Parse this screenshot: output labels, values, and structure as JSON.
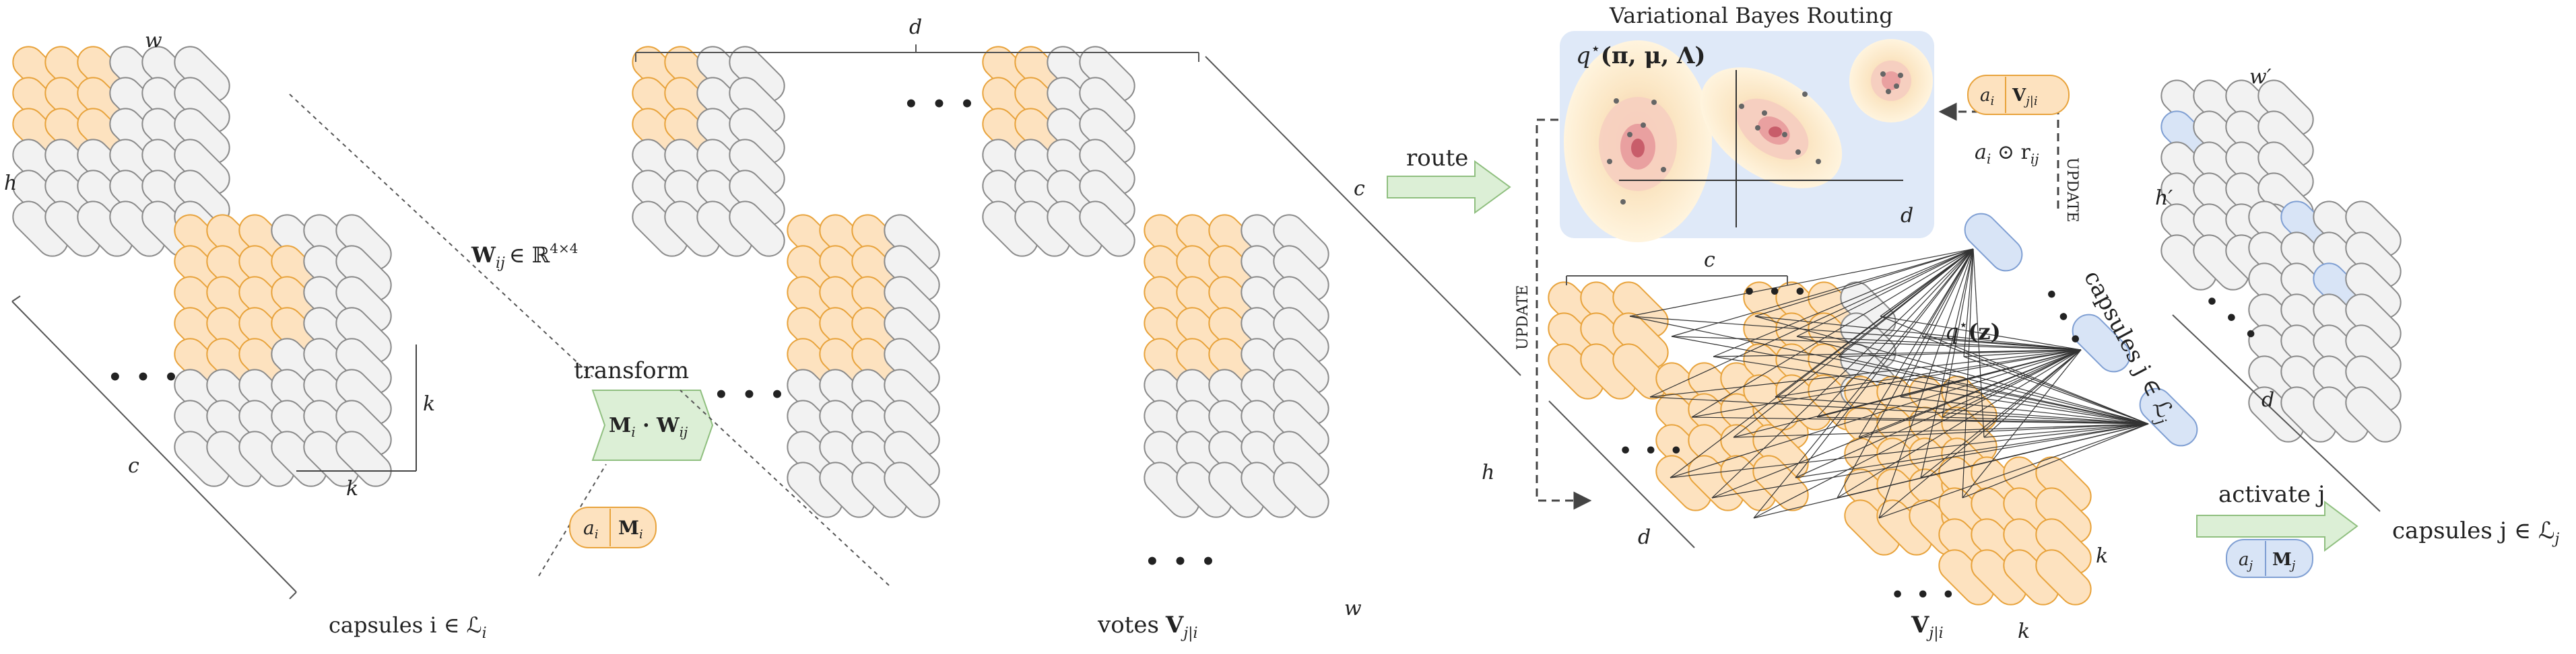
{
  "colors": {
    "orange_fill": "#fde2bf",
    "orange_stroke": "#e8a33c",
    "grey_fill": "#f2f2f2",
    "grey_stroke": "#8a8a8a",
    "blue_fill": "#d8e4f6",
    "blue_stroke": "#7f9fd3",
    "green_fill": "#dcefd6",
    "green_stroke": "#8fbf7f",
    "panel_bg": "#dfe9f8"
  },
  "input_block": {
    "w_label": "w",
    "h_label": "h",
    "c_label": "c",
    "k_label_vertical": "k",
    "k_label_horizontal": "k",
    "weight_label": "W",
    "weight_sub": "ij",
    "weight_space": "∈ ℝ",
    "weight_sup": "4×4",
    "caption": "capsules i ∈ ℒ",
    "caption_sub": "i",
    "dots": "• • •"
  },
  "transform": {
    "title": "transform",
    "formula": "M",
    "formula_sub1": "i",
    "formula_mid": " · W",
    "formula_sub2": "ij",
    "pose_a": "a",
    "pose_a_sub": "i",
    "pose_m": "M",
    "pose_m_sub": "i"
  },
  "votes_block": {
    "d_label": "d",
    "c_label": "c",
    "h_label": "h",
    "w_label": "w",
    "caption_prefix": "votes",
    "caption_V": "V",
    "caption_sub": "j|i",
    "dots": "• • •"
  },
  "route": {
    "label": "route"
  },
  "vb_panel": {
    "title": "Variational Bayes Routing",
    "q_label": "q",
    "q_star": "⋆",
    "q_args": "(π, μ, Λ)",
    "d_label": "d"
  },
  "routing_block": {
    "c_label": "c",
    "d_label": "d",
    "k_label1": "k",
    "k_label2": "k",
    "update_left": "UPDATE",
    "update_right": "UPDATE",
    "qz_label": "q",
    "qz_star": "⋆",
    "qz_args": "(z)",
    "caps_label": "capsules j ∈ ℒ",
    "caps_sub": "j",
    "vote_V": "V",
    "vote_sub": "j|i",
    "pose_a": "a",
    "pose_a_sub": "i",
    "pose_V": "V",
    "pose_V_sub": "j|i",
    "resp_label": "a",
    "resp_sub1": "i",
    "resp_mid": " ⊙ r",
    "resp_sub2": "ij",
    "dots": "• • •"
  },
  "output_block": {
    "w_label": "w",
    "w_prime": "′",
    "h_label": "h",
    "h_prime": "′",
    "d_label": "d",
    "activate_label": "activate j",
    "caption": "capsules j ∈ ℒ",
    "caption_sub": "j",
    "pose_a": "a",
    "pose_a_sub": "j",
    "pose_m": "M",
    "pose_m_sub": "j",
    "dots": "• • •"
  }
}
